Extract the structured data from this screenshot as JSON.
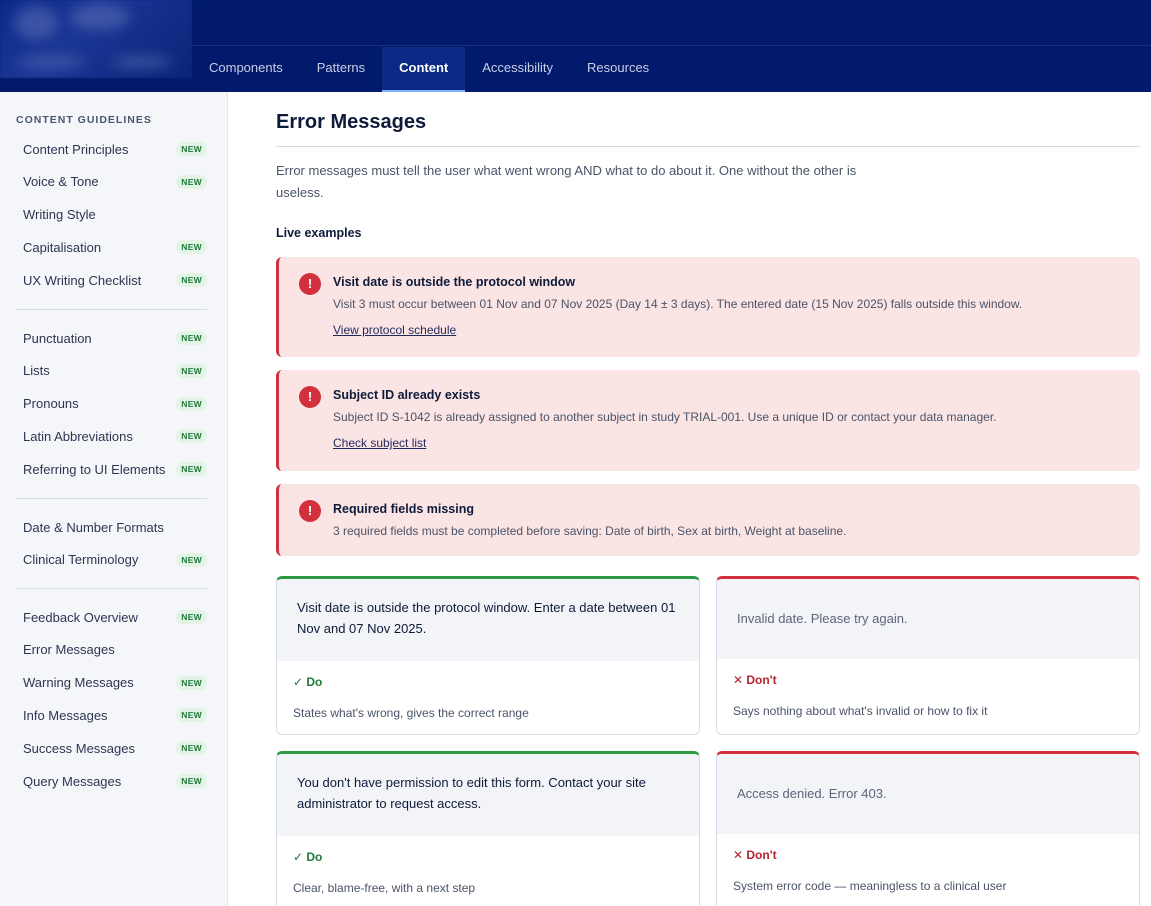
{
  "nav": {
    "tabs": [
      {
        "label": "Components"
      },
      {
        "label": "Patterns"
      },
      {
        "label": "Content",
        "active": true
      },
      {
        "label": "Accessibility"
      },
      {
        "label": "Resources"
      }
    ]
  },
  "sidebar": {
    "heading": "CONTENT GUIDELINES",
    "badge_label": "NEW",
    "groups": [
      [
        {
          "label": "Content Principles",
          "new": true
        },
        {
          "label": "Voice & Tone",
          "new": true
        },
        {
          "label": "Writing Style",
          "new": false
        },
        {
          "label": "Capitalisation",
          "new": true
        },
        {
          "label": "UX Writing Checklist",
          "new": true
        }
      ],
      [
        {
          "label": "Punctuation",
          "new": true
        },
        {
          "label": "Lists",
          "new": true
        },
        {
          "label": "Pronouns",
          "new": true
        },
        {
          "label": "Latin Abbreviations",
          "new": true
        },
        {
          "label": "Referring to UI Elements",
          "new": true
        }
      ],
      [
        {
          "label": "Date & Number Formats",
          "new": false
        },
        {
          "label": "Clinical Terminology",
          "new": true
        }
      ],
      [
        {
          "label": "Feedback Overview",
          "new": true
        },
        {
          "label": "Error Messages",
          "new": false
        },
        {
          "label": "Warning Messages",
          "new": true
        },
        {
          "label": "Info Messages",
          "new": true
        },
        {
          "label": "Success Messages",
          "new": true
        },
        {
          "label": "Query Messages",
          "new": true
        }
      ]
    ]
  },
  "main": {
    "title": "Error Messages",
    "intro": "Error messages must tell the user what went wrong AND what to do about it. One without the other is useless.",
    "section_label": "Live examples",
    "alerts": [
      {
        "icon": "!",
        "title": "Visit date is outside the protocol window",
        "body": "Visit 3 must occur between 01 Nov and 07 Nov 2025 (Day 14 ± 3 days). The entered date (15 Nov 2025) falls outside this window.",
        "link": "View protocol schedule"
      },
      {
        "icon": "!",
        "title": "Subject ID already exists",
        "body": "Subject ID S-1042 is already assigned to another subject in study TRIAL-001. Use a unique ID or contact your data manager.",
        "link": "Check subject list"
      },
      {
        "icon": "!",
        "title": "Required fields missing",
        "body": "3 required fields must be completed before saving: Date of birth, Sex at birth, Weight at baseline.",
        "link": ""
      }
    ],
    "comparisons": [
      {
        "do": {
          "example": "Visit date is outside the protocol window. Enter a date between 01 Nov and 07 Nov 2025.",
          "verdict": "✓ Do",
          "note": "States what's wrong, gives the correct range"
        },
        "dont": {
          "example": "Invalid date. Please try again.",
          "verdict": "✕ Don't",
          "note": "Says nothing about what's invalid or how to fix it"
        }
      },
      {
        "do": {
          "example": "You don't have permission to edit this form. Contact your site administrator to request access.",
          "verdict": "✓ Do",
          "note": "Clear, blame-free, with a next step"
        },
        "dont": {
          "example": "Access denied. Error 403.",
          "verdict": "✕ Don't",
          "note": "System error code — meaningless to a clinical user"
        }
      }
    ]
  }
}
